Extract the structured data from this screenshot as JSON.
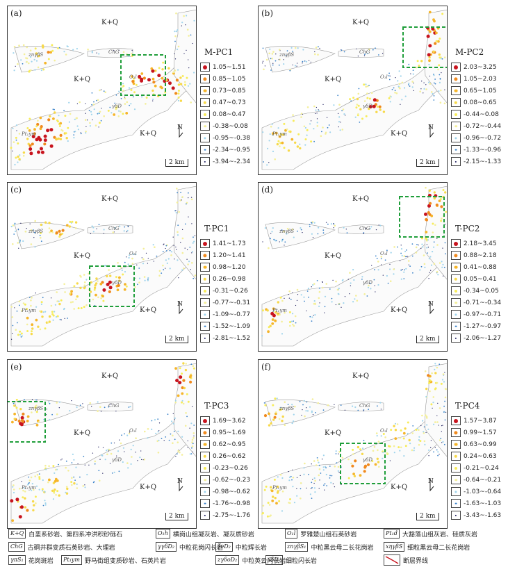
{
  "panels": [
    {
      "id": "a",
      "label": "(a)",
      "title": "M-PC1",
      "ranges": [
        "1.05~1.51",
        "0.85~1.05",
        "0.73~0.85",
        "0.47~0.73",
        "0.08~0.47",
        "-0.38~0.08",
        "-0.95~-0.38",
        "-2.34~-0.95",
        "-3.94~-2.34"
      ],
      "hot": [
        [
          195,
          100,
          1.0
        ],
        [
          235,
          115,
          0.9
        ],
        [
          165,
          170,
          0.8
        ],
        [
          60,
          180,
          1.0
        ],
        [
          40,
          205,
          0.9
        ],
        [
          60,
          75,
          0.6
        ]
      ]
    },
    {
      "id": "b",
      "label": "(b)",
      "title": "M-PC2",
      "ranges": [
        "2.03~3.25",
        "1.05~2.03",
        "0.65~1.05",
        "0.08~0.65",
        "-0.44~0.08",
        "-0.72~-0.44",
        "-0.96~-0.72",
        "-1.33~-0.96",
        "-2.15~-1.33"
      ],
      "hot": [
        [
          240,
          60,
          1.0
        ],
        [
          250,
          20,
          0.9
        ],
        [
          165,
          140,
          0.8
        ],
        [
          40,
          190,
          0.7
        ]
      ]
    },
    {
      "id": "c",
      "label": "(c)",
      "title": "T-PC1",
      "ranges": [
        "1.41~1.73",
        "1.20~1.41",
        "0.98~1.20",
        "0.26~0.98",
        "-0.31~0.26",
        "-0.77~-0.31",
        "-1.09~-0.77",
        "-1.52~-1.09",
        "-2.81~-1.52"
      ],
      "hot": [
        [
          150,
          150,
          1.0
        ],
        [
          75,
          60,
          0.7
        ],
        [
          40,
          200,
          0.7
        ],
        [
          95,
          160,
          0.6
        ]
      ]
    },
    {
      "id": "d",
      "label": "(d)",
      "title": "T-PC2",
      "ranges": [
        "2.18~3.45",
        "0.88~2.18",
        "0.41~0.88",
        "0.05~0.41",
        "-0.34~0.05",
        "-0.71~-0.34",
        "-0.97~-0.71",
        "-1.27~-0.97",
        "-2.06~-1.27"
      ],
      "hot": [
        [
          235,
          50,
          1.0
        ],
        [
          20,
          195,
          0.8
        ],
        [
          250,
          20,
          0.8
        ]
      ]
    },
    {
      "id": "e",
      "label": "(e)",
      "title": "T-PC3",
      "ranges": [
        "1.69~3.62",
        "0.95~1.69",
        "0.62~0.95",
        "0.26~0.62",
        "-0.23~0.26",
        "-0.62~-0.23",
        "-0.98~-0.62",
        "-1.76~-0.98",
        "-2.75~-1.76"
      ],
      "hot": [
        [
          22,
          90,
          1.0
        ],
        [
          245,
          30,
          1.0
        ],
        [
          15,
          215,
          1.0
        ],
        [
          70,
          180,
          0.6
        ]
      ]
    },
    {
      "id": "f",
      "label": "(f)",
      "title": "T-PC4",
      "ranges": [
        "1.57~3.87",
        "0.99~1.57",
        "0.63~0.99",
        "0.24~0.63",
        "-0.21~0.24",
        "-0.64~-0.21",
        "-1.03~-0.64",
        "-1.63~-1.03",
        "-3.43~-1.63"
      ],
      "hot": [
        [
          150,
          150,
          0.9
        ],
        [
          20,
          85,
          0.7
        ],
        [
          200,
          110,
          0.6
        ],
        [
          20,
          200,
          0.6
        ],
        [
          240,
          30,
          0.6
        ]
      ]
    }
  ],
  "map_text": {
    "kq": "K+Q",
    "chg": "ChG",
    "zn_gamma_beta_s": "znγβS",
    "o1": "O₁l",
    "pt_ym": "Pt₁ym",
    "gamma_delta_d": "γδD",
    "north": "N",
    "scale": "2 km"
  },
  "symbol_colors": [
    "#c8141e",
    "#f08a1e",
    "#f5b52a",
    "#f7d94a",
    "#f7ec5a",
    "#f4ef9a",
    "#9fd4ec",
    "#3a82c9",
    "#202060"
  ],
  "footer": [
    {
      "code": "K+Q",
      "text": "白垩系砂岩、第四系冲洪积砂砾石"
    },
    {
      "code": "O₁h",
      "text": "横岗山组凝灰岩、凝灰质砂岩"
    },
    {
      "code": "O₁l",
      "text": "罗雅楚山组石英砂岩"
    },
    {
      "code": "Pt₁d",
      "text": "大豁落山组灰岩、硅质灰岩"
    },
    {
      "code": "ChG",
      "text": "古硐井群变质石英砂岩、大理岩"
    },
    {
      "code": "γγδD₂",
      "text": "中粒花岗闪长岩"
    },
    {
      "code": "ξνD₂",
      "text": "中粒辉长岩"
    },
    {
      "code": "znγβS₁",
      "text": "中粒黑云母二长花岗岩"
    },
    {
      "code": "xηγβS",
      "text": "细粒黑云母二长花岗岩"
    },
    {
      "code": "γπS₁",
      "text": "花岗斑岩"
    },
    {
      "code": "Pt₁ym",
      "text": "野马街组变质砂岩、石英片岩"
    },
    {
      "code": "zγδoD₂",
      "text": "中粒英云闪长岩"
    },
    {
      "code": "xδD₂",
      "text": "细粒闪长岩"
    },
    {
      "code": "",
      "text": "断层界线"
    }
  ]
}
